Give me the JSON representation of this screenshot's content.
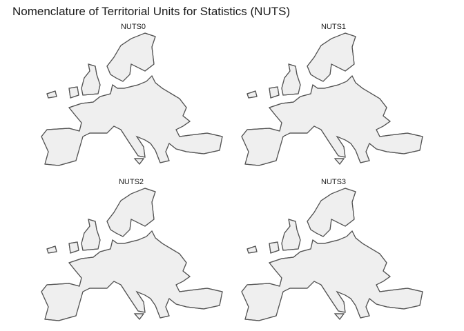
{
  "title": "Nomenclature of Territorial Units for Statistics (NUTS)",
  "panels": [
    {
      "label": "NUTS0"
    },
    {
      "label": "NUTS1"
    },
    {
      "label": "NUTS2"
    },
    {
      "label": "NUTS3"
    }
  ]
}
